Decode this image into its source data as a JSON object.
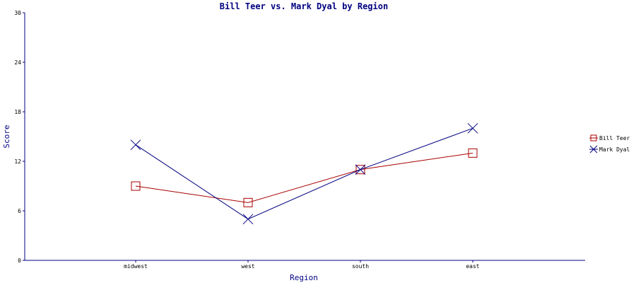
{
  "chart_data": {
    "type": "line",
    "title": "Bill Teer vs. Mark Dyal by Region",
    "xlabel": "Region",
    "ylabel": "Score",
    "categories": [
      "midwest",
      "west",
      "south",
      "east"
    ],
    "ylim": [
      0,
      30
    ],
    "yticks": [
      0,
      6,
      12,
      18,
      24,
      30
    ],
    "grid": false,
    "legend_position": "right",
    "series": [
      {
        "name": "Bill Teer",
        "values": [
          9,
          7,
          11,
          13
        ],
        "color": "#aa0000",
        "marker": "square"
      },
      {
        "name": "Mark Dyal",
        "values": [
          14,
          5,
          11,
          16
        ],
        "color": "#000080",
        "marker": "x"
      }
    ]
  }
}
